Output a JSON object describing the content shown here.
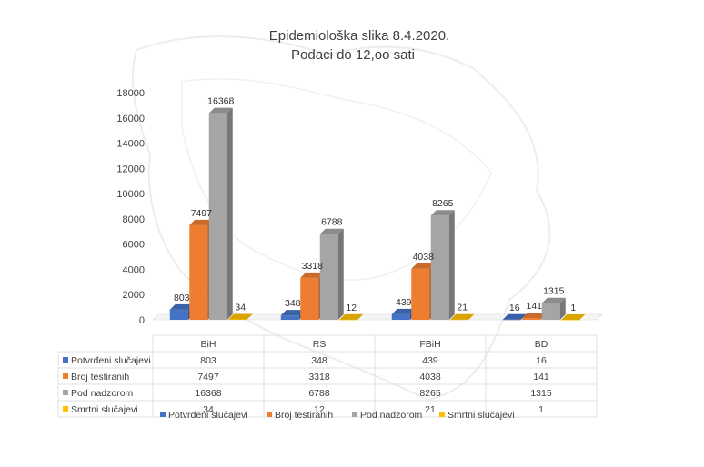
{
  "chart_data": {
    "type": "bar",
    "title": "Epidemiološka slika 8.4.2020.",
    "subtitle": "Podaci do 12,oo sati",
    "categories": [
      "BiH",
      "RS",
      "FBiH",
      "BD"
    ],
    "series": [
      {
        "name": "Potvrđeni slučajevi",
        "color": "#4472C4",
        "values": [
          803,
          348,
          439,
          16
        ]
      },
      {
        "name": "Broj testiranih",
        "color": "#ED7D31",
        "values": [
          7497,
          3318,
          4038,
          141
        ]
      },
      {
        "name": "Pod nadzorom",
        "color": "#A5A5A5",
        "values": [
          16368,
          6788,
          8265,
          1315
        ]
      },
      {
        "name": "Smrtni slučajevi",
        "color": "#FFC000",
        "values": [
          34,
          12,
          21,
          1
        ]
      }
    ],
    "y_ticks": [
      "0",
      "2000",
      "4000",
      "6000",
      "8000",
      "10000",
      "12000",
      "14000",
      "16000",
      "18000"
    ],
    "ylim": [
      0,
      18000
    ],
    "grid": false,
    "legend_position": "bottom",
    "data_table": true
  }
}
